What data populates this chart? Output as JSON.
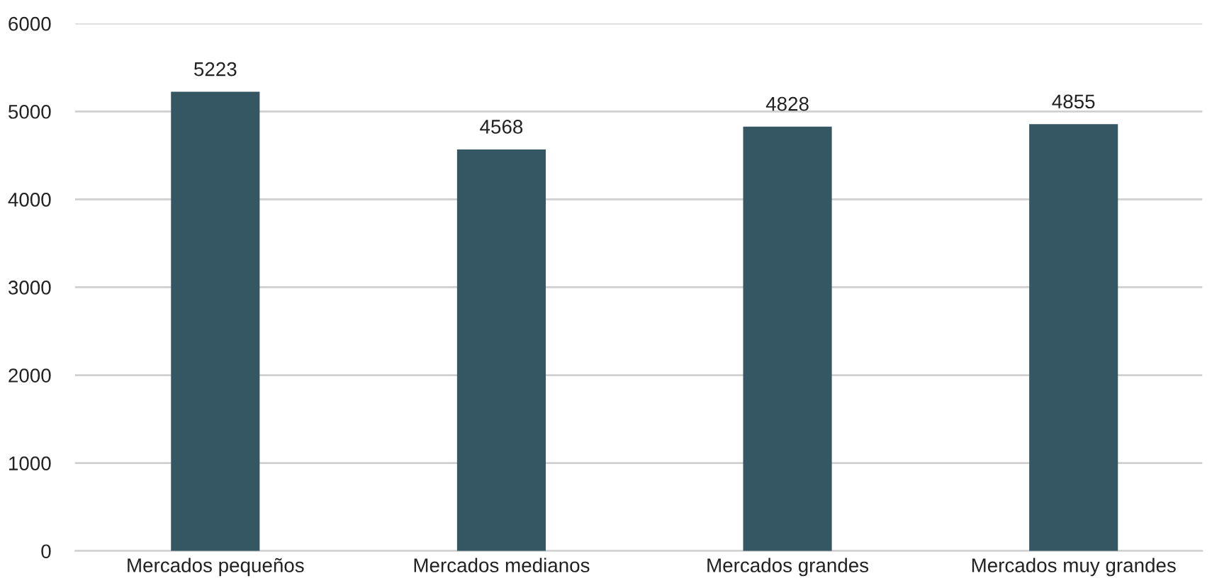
{
  "chart_data": {
    "type": "bar",
    "categories": [
      "Mercados pequeños",
      "Mercados medianos",
      "Mercados grandes",
      "Mercados muy grandes"
    ],
    "values": [
      5223,
      4568,
      4828,
      4855
    ],
    "color": "#355663",
    "ylim": [
      0,
      6000
    ],
    "yticks": [
      0,
      1000,
      2000,
      3000,
      4000,
      5000,
      6000
    ],
    "grid": "y",
    "data_labels": true,
    "legend": false
  }
}
